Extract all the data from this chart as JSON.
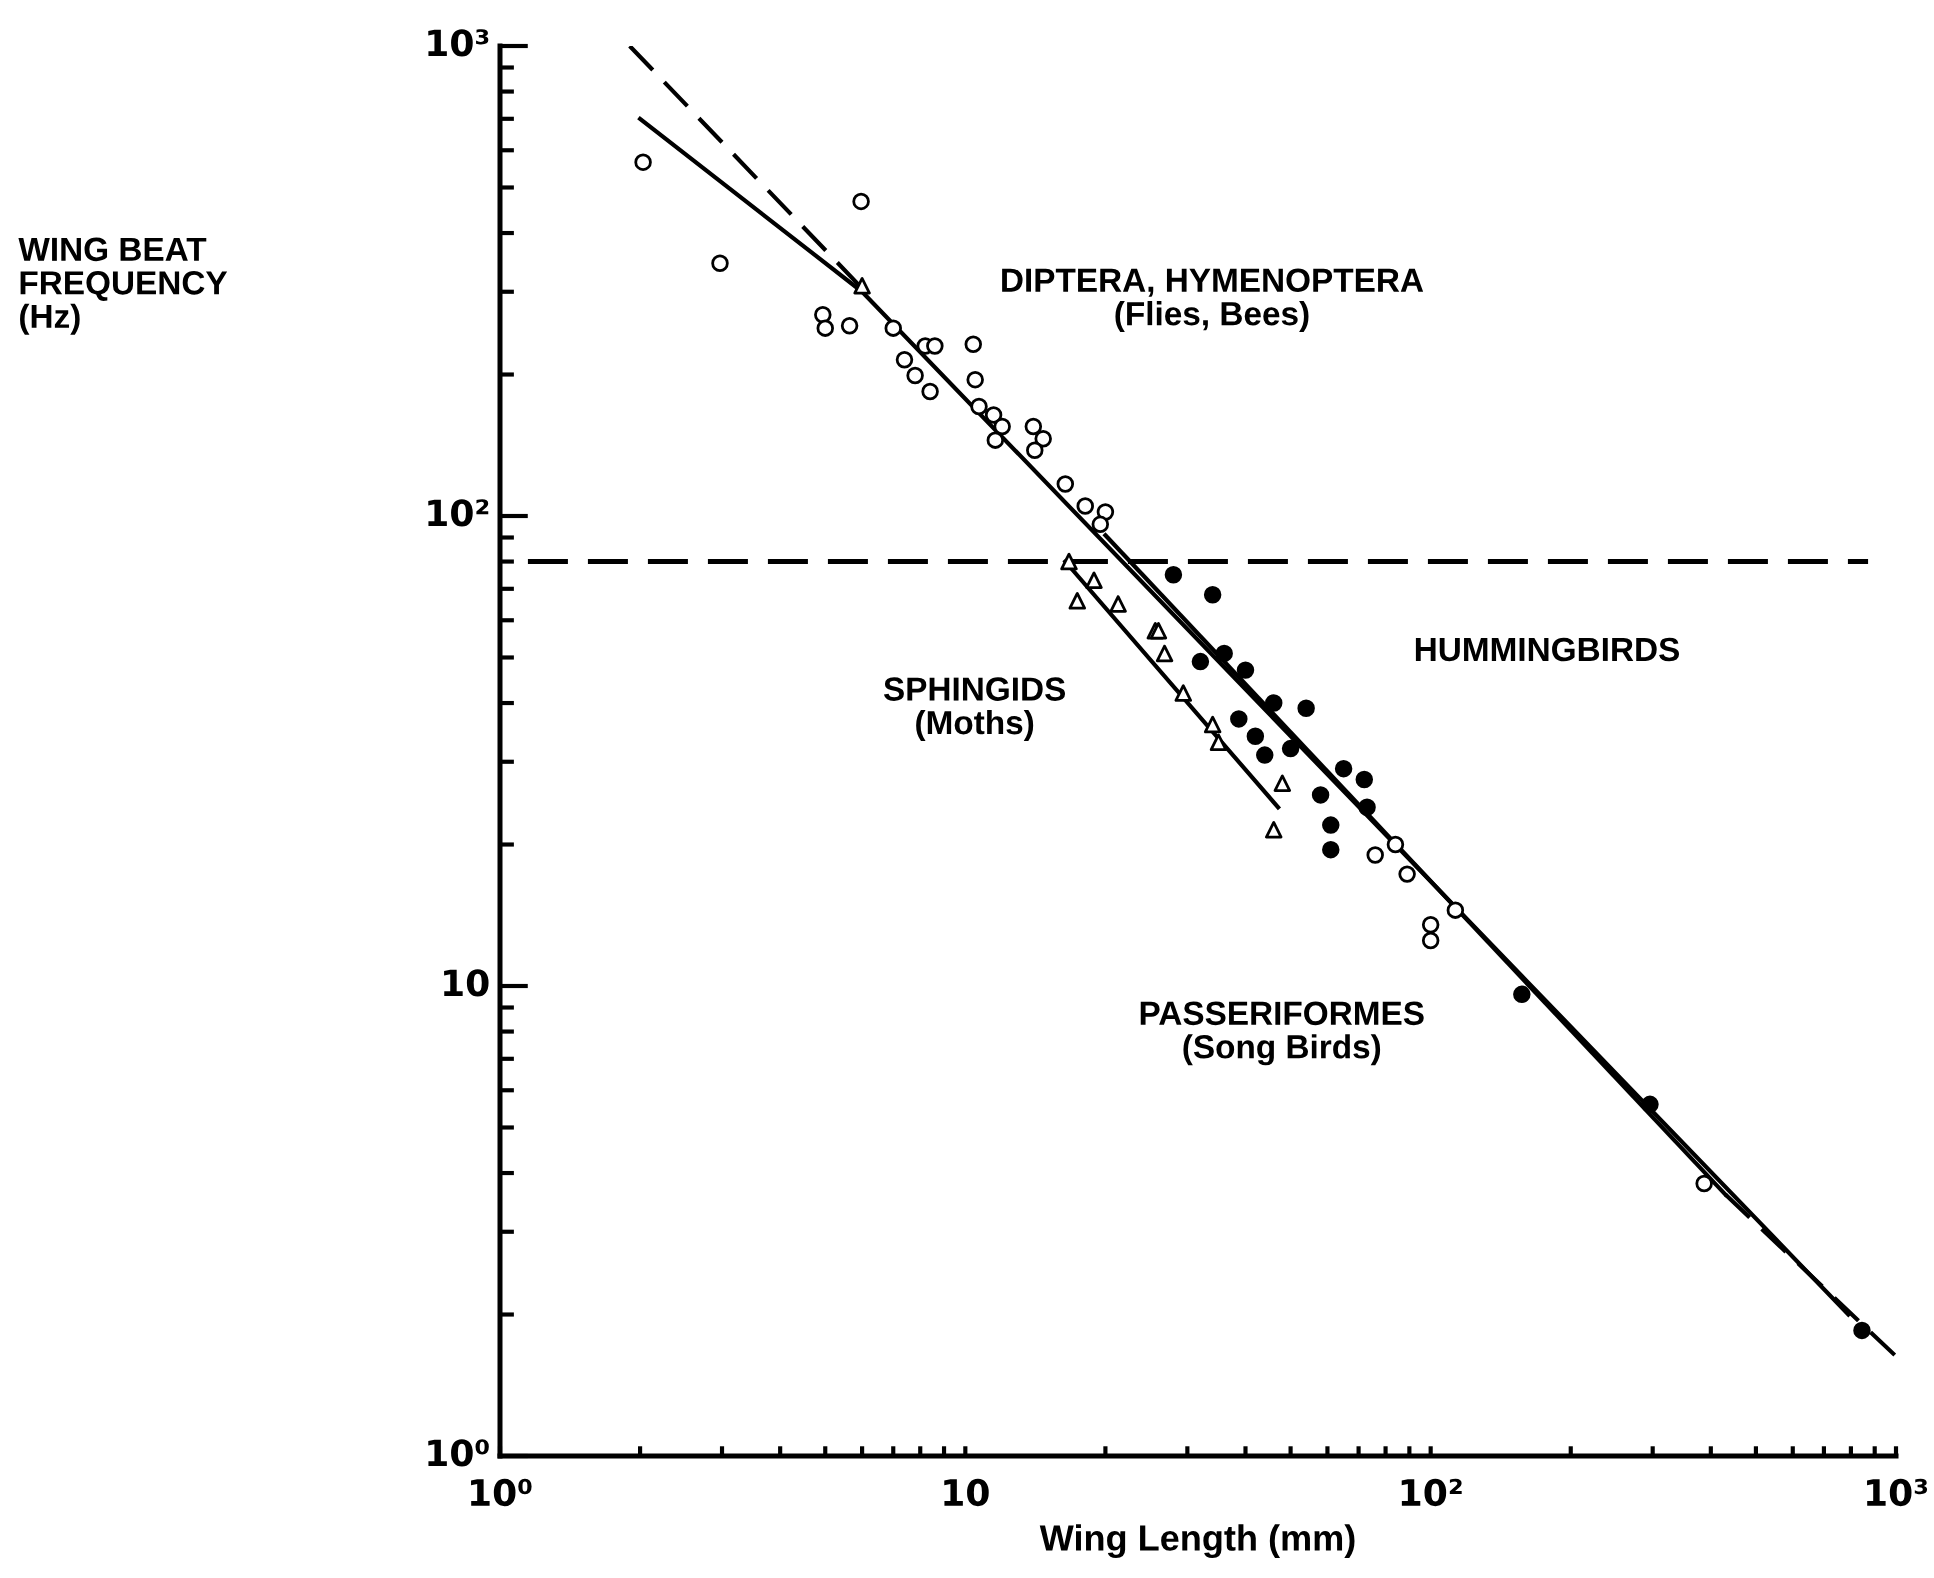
{
  "chart_data": {
    "type": "scatter",
    "xlabel": "Wing Length (mm)",
    "log": "xy",
    "grid": false,
    "legend": false,
    "xlim": [
      1,
      1000
    ],
    "ylim": [
      1,
      1000
    ],
    "xticks": [
      {
        "value": 1,
        "label": "10⁰"
      },
      {
        "value": 2,
        "label": null
      },
      {
        "value": 3,
        "label": null
      },
      {
        "value": 4,
        "label": null
      },
      {
        "value": 5,
        "label": null
      },
      {
        "value": 6,
        "label": null
      },
      {
        "value": 7,
        "label": null
      },
      {
        "value": 8,
        "label": null
      },
      {
        "value": 9,
        "label": null
      },
      10,
      {
        "value": 20,
        "label": null
      },
      {
        "value": 30,
        "label": null
      },
      {
        "value": 40,
        "label": null
      },
      {
        "value": 50,
        "label": null
      },
      {
        "value": 60,
        "label": null
      },
      {
        "value": 70,
        "label": null
      },
      {
        "value": 80,
        "label": null
      },
      {
        "value": 90,
        "label": null
      },
      {
        "value": 100,
        "label": "10²"
      },
      {
        "value": 200,
        "label": null
      },
      {
        "value": 300,
        "label": null
      },
      {
        "value": 400,
        "label": null
      },
      {
        "value": 500,
        "label": null
      },
      {
        "value": 600,
        "label": null
      },
      {
        "value": 700,
        "label": null
      },
      {
        "value": 800,
        "label": null
      },
      {
        "value": 900,
        "label": null
      },
      {
        "value": 1000,
        "label": "10³"
      }
    ],
    "yticks": [
      {
        "value": 1,
        "label": "10⁰"
      },
      {
        "value": 2,
        "label": null
      },
      {
        "value": 3,
        "label": null
      },
      {
        "value": 4,
        "label": null
      },
      {
        "value": 5,
        "label": null
      },
      {
        "value": 6,
        "label": null
      },
      {
        "value": 7,
        "label": null
      },
      {
        "value": 8,
        "label": null
      },
      {
        "value": 9,
        "label": null
      },
      10,
      {
        "value": 20,
        "label": null
      },
      {
        "value": 30,
        "label": null
      },
      {
        "value": 40,
        "label": null
      },
      {
        "value": 50,
        "label": null
      },
      {
        "value": 60,
        "label": null
      },
      {
        "value": 70,
        "label": null
      },
      {
        "value": 80,
        "label": null
      },
      {
        "value": 90,
        "label": null
      },
      {
        "value": 100,
        "label": "10²"
      },
      {
        "value": 200,
        "label": null
      },
      {
        "value": 300,
        "label": null
      },
      {
        "value": 400,
        "label": null
      },
      {
        "value": 500,
        "label": null
      },
      {
        "value": 600,
        "label": null
      },
      {
        "value": 700,
        "label": null
      },
      {
        "value": 800,
        "label": null
      },
      {
        "value": 900,
        "label": null
      },
      {
        "value": 1000,
        "label": "10³"
      }
    ],
    "ref_lines": [
      {
        "axis": "y",
        "value": 80,
        "line_style": "dashed",
        "color": "#000000"
      }
    ],
    "annotations": [
      "WING BEAT\nFREQUENCY\n(Hz)",
      "DIPTERA, HYMENOPTERA\n(Flies, Bees)",
      "SPHINGIDS\n(Moths)",
      "HUMMINGBIRDS",
      "PASSERIFORMES\n(Song Birds)"
    ],
    "series": [
      {
        "marker": "circle",
        "color": "#ffffff",
        "x": [
          2.03,
          2.97,
          5.97,
          4.94,
          5.0,
          5.64,
          8.2,
          7.4,
          7.8,
          8.4,
          7.0,
          8.6,
          10.4,
          10.5,
          10.7,
          11.5,
          11.6,
          12.0,
          14.0,
          14.7,
          14.1,
          16.4,
          18.1,
          20,
          19.5,
          84,
          89,
          100,
          100,
          113,
          387,
          76
        ],
        "values": [
          566,
          345,
          467,
          268,
          251,
          254,
          230,
          215,
          199,
          184,
          251,
          230,
          232,
          195,
          171,
          164,
          145,
          155,
          155,
          146,
          138,
          117,
          105,
          102,
          96,
          20,
          17.3,
          13.5,
          12.5,
          14.5,
          3.8,
          19
        ]
      },
      {
        "marker": "triangle",
        "color": "#ffffff",
        "x": [
          6.0,
          16.7,
          17.4,
          18.9,
          21.3,
          25.6,
          26,
          26.8,
          29.4,
          34,
          35,
          48,
          46
        ],
        "values": [
          309,
          80,
          66,
          73,
          65,
          57,
          57,
          51,
          42,
          36,
          33,
          27,
          21.5
        ]
      },
      {
        "marker": "circle",
        "color": "#000000",
        "x": [
          28,
          34,
          32,
          36,
          40,
          38.7,
          42,
          54,
          46,
          50,
          44,
          65,
          72,
          61,
          61,
          58,
          73,
          157,
          296,
          845
        ],
        "values": [
          75,
          68,
          49,
          51,
          47,
          37,
          34,
          39,
          40,
          32,
          31,
          29,
          27.5,
          22,
          19.5,
          25.5,
          24,
          9.6,
          5.6,
          1.85
        ]
      },
      {
        "type": "line",
        "line_style": "solid",
        "color": "#000000",
        "x": [
          2.0,
          6,
          790
        ],
        "values": [
          700,
          300,
          2.0
        ]
      },
      {
        "type": "line",
        "line_style": "dashed",
        "color": "#000000",
        "x": [
          1.9,
          6.3
        ],
        "values": [
          1000,
          290
        ]
      },
      {
        "type": "line",
        "line_style": "solid",
        "color": "#000000",
        "x": [
          16.4,
          47
        ],
        "values": [
          80,
          24
        ]
      },
      {
        "type": "line",
        "line_style": "solid",
        "color": "#000000",
        "x": [
          20,
          430
        ],
        "values": [
          91,
          3.6
        ]
      },
      {
        "type": "line",
        "line_style": "dashed",
        "color": "#000000",
        "x": [
          430,
          1000
        ],
        "values": [
          3.6,
          1.63
        ]
      }
    ]
  }
}
